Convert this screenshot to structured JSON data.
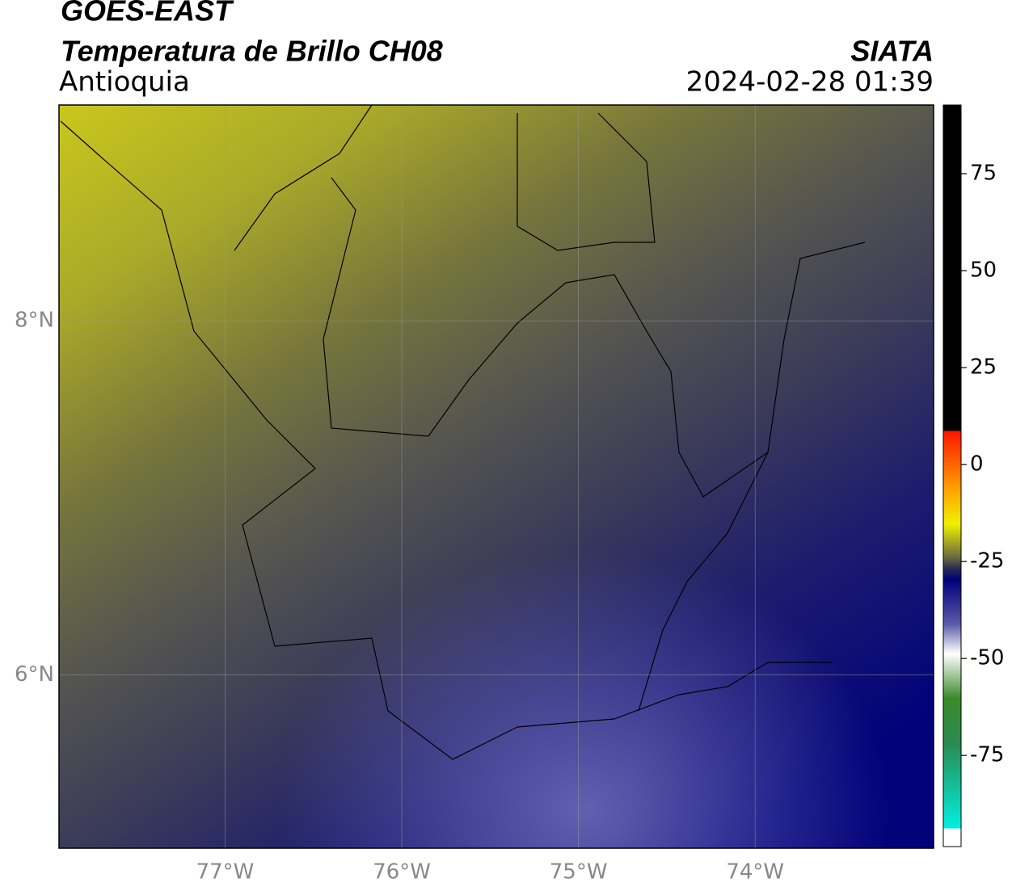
{
  "header": {
    "satellite": "GOES-EAST",
    "product": "Temperatura de Brillo CH08",
    "region": "Antioquia",
    "agency": "SIATA",
    "datetime": "2024-02-28 01:39"
  },
  "map": {
    "xlim": [
      -77.94,
      -72.99
    ],
    "ylim": [
      5.02,
      9.22
    ],
    "xticks": [
      {
        "value": -77,
        "label": "77°W"
      },
      {
        "value": -76,
        "label": "76°W"
      },
      {
        "value": -75,
        "label": "75°W"
      },
      {
        "value": -74,
        "label": "74°W"
      }
    ],
    "yticks": [
      {
        "value": 8,
        "label": "8°N"
      },
      {
        "value": 6,
        "label": "6°N"
      }
    ]
  },
  "colorbar": {
    "lim": [
      -98.5,
      92.7
    ],
    "ticks": [
      75,
      50,
      25,
      0,
      -25,
      -50,
      -75
    ]
  }
}
